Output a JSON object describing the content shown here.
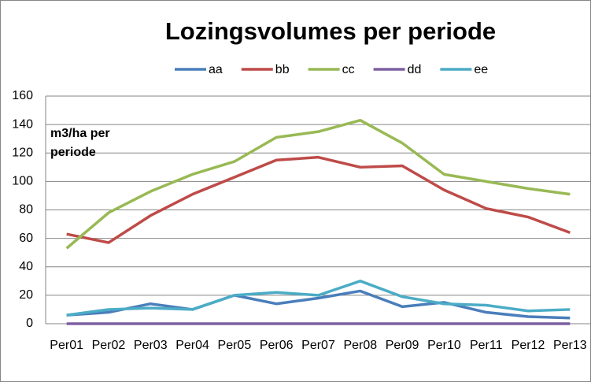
{
  "chart_data": {
    "type": "line",
    "title": "Lozingsvolumes per periode",
    "y_label": "m3/ha per periode",
    "categories": [
      "Per01",
      "Per02",
      "Per03",
      "Per04",
      "Per05",
      "Per06",
      "Per07",
      "Per08",
      "Per09",
      "Per10",
      "Per11",
      "Per12",
      "Per13"
    ],
    "series": [
      {
        "name": "aa",
        "color": "#4a7ebb",
        "values": [
          6,
          8,
          14,
          10,
          20,
          14,
          18,
          23,
          12,
          15,
          8,
          5,
          4
        ]
      },
      {
        "name": "bb",
        "color": "#be4b48",
        "values": [
          63,
          57,
          76,
          91,
          103,
          115,
          117,
          110,
          111,
          94,
          81,
          75,
          64
        ]
      },
      {
        "name": "cc",
        "color": "#98b954",
        "values": [
          53,
          78,
          93,
          105,
          114,
          131,
          135,
          143,
          127,
          105,
          100,
          95,
          91
        ]
      },
      {
        "name": "dd",
        "color": "#7d60a0",
        "values": [
          0,
          0,
          0,
          0,
          0,
          0,
          0,
          0,
          0,
          0,
          0,
          0,
          0
        ]
      },
      {
        "name": "ee",
        "color": "#4bacc6",
        "values": [
          6,
          10,
          11,
          10,
          20,
          22,
          20,
          30,
          19,
          14,
          13,
          9,
          10
        ]
      }
    ],
    "ylim": [
      0,
      160
    ],
    "yticks": [
      0,
      20,
      40,
      60,
      80,
      100,
      120,
      140,
      160
    ],
    "grid": true,
    "legend": "top"
  }
}
